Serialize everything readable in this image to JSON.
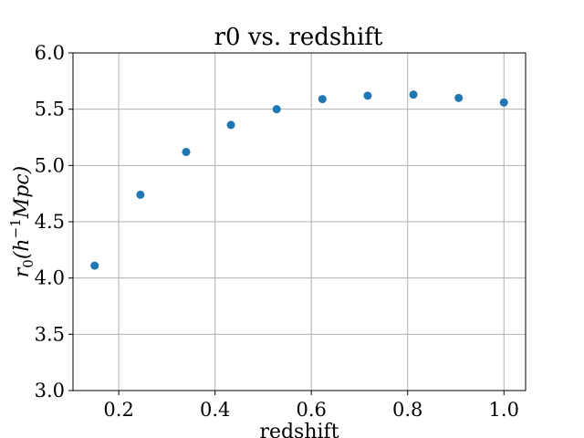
{
  "chart_data": {
    "type": "scatter",
    "title": "r0 vs. redshift",
    "xlabel": "redshift",
    "ylabel_parts": {
      "base": "r",
      "sub": "0",
      "open": "(h",
      "sup": "−1",
      "rest": "Mpc)"
    },
    "xlim": [
      0.105,
      1.045
    ],
    "ylim": [
      3.0,
      6.0
    ],
    "xticks": [
      0.2,
      0.4,
      0.6,
      0.8,
      1.0
    ],
    "xtick_labels": [
      "0.2",
      "0.4",
      "0.6",
      "0.8",
      "1.0"
    ],
    "yticks": [
      3.0,
      3.5,
      4.0,
      4.5,
      5.0,
      5.5,
      6.0
    ],
    "ytick_labels": [
      "3.0",
      "3.5",
      "4.0",
      "4.5",
      "5.0",
      "5.5",
      "6.0"
    ],
    "grid": true,
    "marker_color": "#1f77b4",
    "series": [
      {
        "x": [
          0.15,
          0.245,
          0.34,
          0.433,
          0.528,
          0.623,
          0.717,
          0.812,
          0.906,
          1.0
        ],
        "y": [
          4.11,
          4.74,
          5.12,
          5.36,
          5.5,
          5.59,
          5.62,
          5.63,
          5.6,
          5.56
        ]
      }
    ]
  }
}
